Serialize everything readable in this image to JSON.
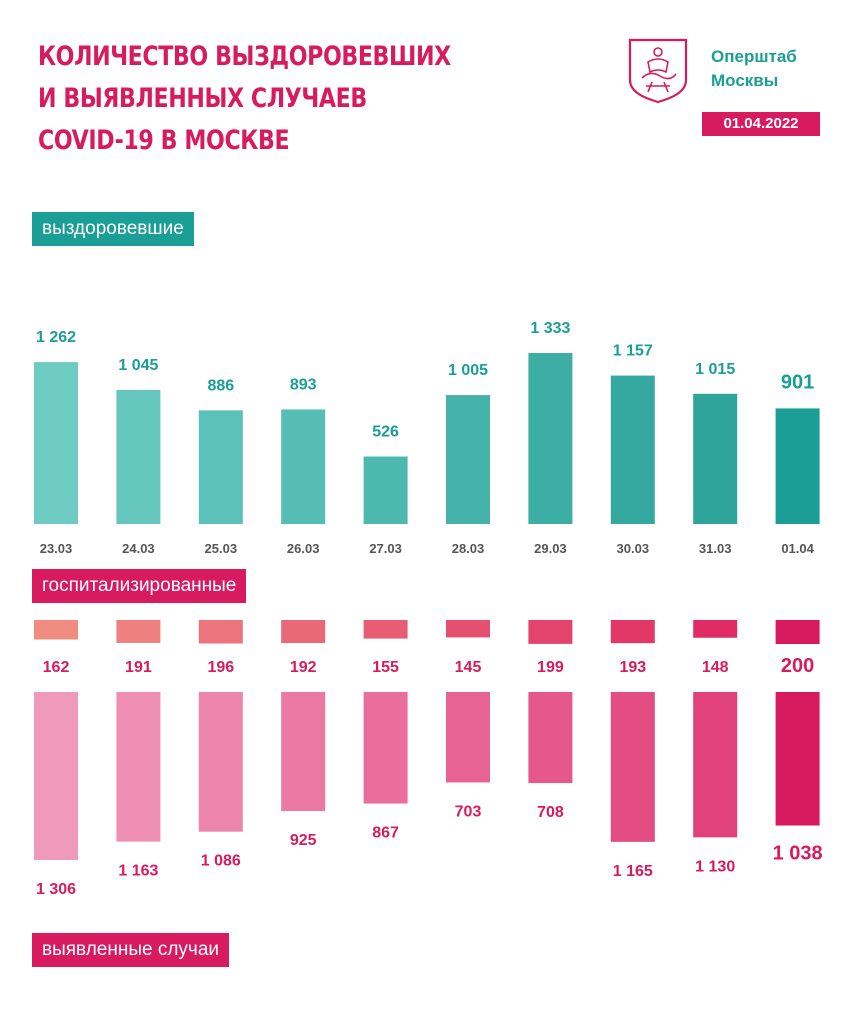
{
  "header": {
    "title_lines": [
      "Количество выздоровевших",
      "и выявленных случаев",
      "COVID-19 в Москве"
    ],
    "org_lines": [
      "Оперштаб",
      "Москвы"
    ],
    "date": "01.04.2022"
  },
  "labels": {
    "recovered": "выздоровевшие",
    "hospitalized": "госпитализированные",
    "cases": "выявленные случаи"
  },
  "colors": {
    "brand_pink": "#d81b5e",
    "brand_teal": "#1a9e95",
    "date_gray": "#555555"
  },
  "chart_data": {
    "type": "bar",
    "categories": [
      "23.03",
      "24.03",
      "25.03",
      "26.03",
      "27.03",
      "28.03",
      "29.03",
      "30.03",
      "31.03",
      "01.04"
    ],
    "series": [
      {
        "name": "выздоровевшие",
        "values": [
          1262,
          1045,
          886,
          893,
          526,
          1005,
          1333,
          1157,
          1015,
          901
        ],
        "value_labels": [
          "1 262",
          "1 045",
          "886",
          "893",
          "526",
          "1 005",
          "1 333",
          "1 157",
          "1 015",
          "901"
        ],
        "colors": [
          "#6dcbc2",
          "#64c6bd",
          "#5cc1b8",
          "#55bdb3",
          "#4db8ae",
          "#45b3a9",
          "#3daea4",
          "#35a99f",
          "#2ea49a",
          "#1a9e95"
        ]
      },
      {
        "name": "госпитализированные",
        "values": [
          162,
          191,
          196,
          192,
          155,
          145,
          199,
          193,
          148,
          200
        ],
        "value_labels": [
          "162",
          "191",
          "196",
          "192",
          "155",
          "145",
          "199",
          "193",
          "148",
          "200"
        ],
        "colors": [
          "#f08c80",
          "#ee8080",
          "#ec747c",
          "#ea6878",
          "#e85c74",
          "#e65070",
          "#e4446c",
          "#e23868",
          "#e02c64",
          "#d81b5e"
        ]
      },
      {
        "name": "выявленные случаи",
        "values": [
          1306,
          1163,
          1086,
          925,
          867,
          703,
          708,
          1165,
          1130,
          1038
        ],
        "value_labels": [
          "1 306",
          "1 163",
          "1 086",
          "925",
          "867",
          "703",
          "708",
          "1 165",
          "1 130",
          "1 038"
        ],
        "colors": [
          "#f09ab9",
          "#ef8fb1",
          "#ed84a9",
          "#eb79a1",
          "#e96e99",
          "#e76391",
          "#e55889",
          "#e34d81",
          "#e14279",
          "#d81b5e"
        ]
      }
    ]
  }
}
